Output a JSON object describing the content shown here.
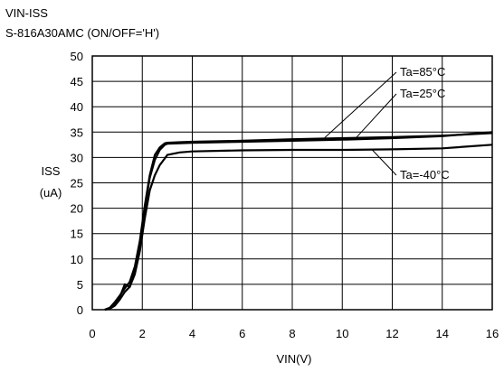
{
  "header": {
    "line1": "VIN-ISS",
    "line2": "S-816A30AMC (ON/OFF='H')"
  },
  "chart_data": {
    "type": "line",
    "xlabel": "VIN(V)",
    "ylabel_line1": "ISS",
    "ylabel_line2": "(uA)",
    "xlim": [
      0,
      16
    ],
    "ylim": [
      0,
      50
    ],
    "xticks": [
      0,
      2,
      4,
      6,
      8,
      10,
      12,
      14,
      16
    ],
    "yticks": [
      0,
      5,
      10,
      15,
      20,
      25,
      30,
      35,
      40,
      45,
      50
    ],
    "grid": true,
    "series": [
      {
        "name": "Ta=85°C",
        "x": [
          0.5,
          0.7,
          0.9,
          1.1,
          1.3,
          1.5,
          1.7,
          1.9,
          2.1,
          2.3,
          2.5,
          2.7,
          2.9,
          3.0,
          3.5,
          4,
          6,
          8,
          10,
          12,
          14,
          16
        ],
        "y": [
          0,
          0.4,
          1.5,
          2.8,
          4.2,
          5.5,
          8.5,
          13.5,
          20.5,
          26.5,
          30.5,
          32.0,
          32.8,
          32.9,
          33.0,
          33.1,
          33.3,
          33.6,
          33.8,
          34.0,
          34.3,
          34.8
        ]
      },
      {
        "name": "Ta=25°C",
        "x": [
          0.5,
          0.7,
          0.9,
          1.1,
          1.3,
          1.5,
          1.7,
          1.9,
          2.1,
          2.3,
          2.5,
          2.7,
          2.9,
          3.0,
          3.5,
          4,
          6,
          8,
          10,
          12,
          14,
          16
        ],
        "y": [
          0,
          0.3,
          1.2,
          2.5,
          5.0,
          4.5,
          8.0,
          13.0,
          20.0,
          26.0,
          29.5,
          31.5,
          32.5,
          32.7,
          32.8,
          32.9,
          33.1,
          33.3,
          33.5,
          33.8,
          34.2,
          35.0
        ]
      },
      {
        "name": "Ta=-40°C",
        "x": [
          0.5,
          0.7,
          0.9,
          1.1,
          1.3,
          1.5,
          1.7,
          1.9,
          2.1,
          2.3,
          2.5,
          2.7,
          2.9,
          3.0,
          3.5,
          4,
          6,
          8,
          10,
          12,
          14,
          16
        ],
        "y": [
          0,
          0.2,
          0.8,
          2.0,
          3.5,
          4.5,
          7.0,
          11.5,
          18.0,
          23.5,
          26.5,
          28.5,
          29.8,
          30.5,
          31.0,
          31.2,
          31.4,
          31.5,
          31.5,
          31.6,
          31.8,
          32.5
        ]
      }
    ],
    "annotations": [
      "Ta=85°C",
      "Ta=25°C",
      "Ta=-40°C"
    ]
  }
}
